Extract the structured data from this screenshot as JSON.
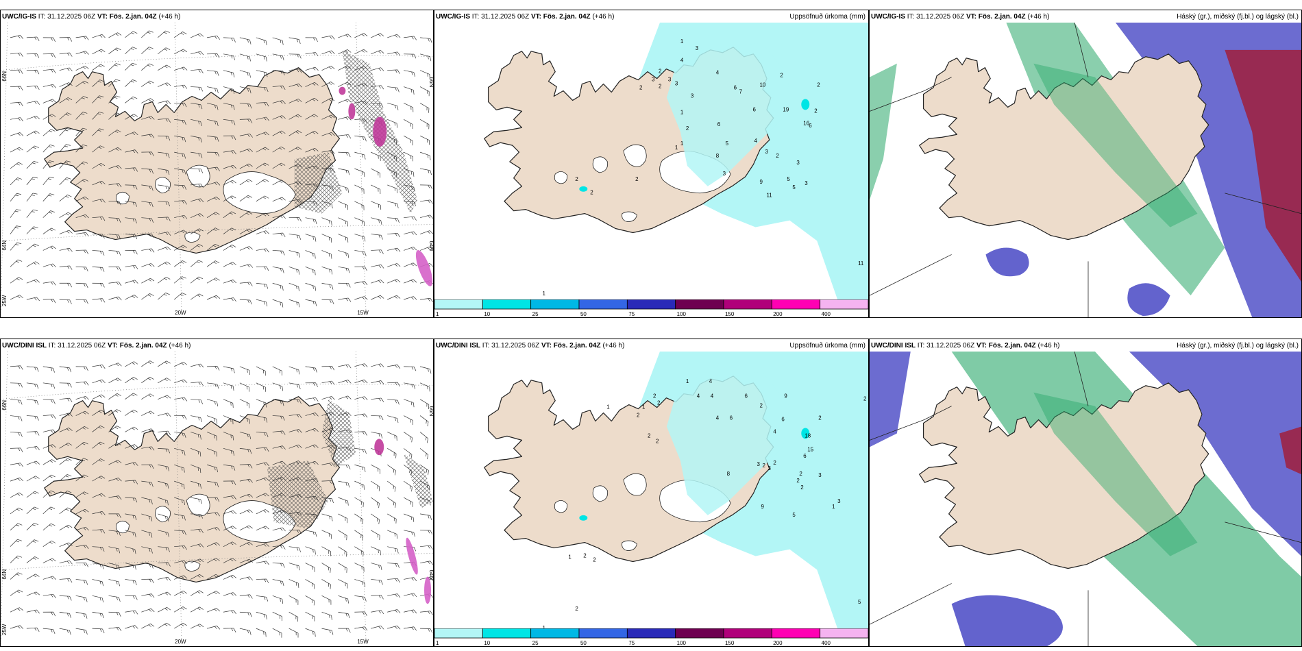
{
  "rows": [
    {
      "model": "UWC/IG-IS",
      "it_label": "IT:",
      "it_value": "31.12.2025 06Z",
      "vt_label": "VT:",
      "vt_value": "Fös. 2.jan. 04Z",
      "lead": "(+46 h)",
      "precip": {
        "title": "Uppsöfnuð úrkoma (mm)",
        "values": [
          {
            "v": "1"
          },
          {
            "v": "2"
          },
          {
            "v": "3"
          },
          {
            "v": "2"
          },
          {
            "v": "3"
          },
          {
            "v": "3"
          },
          {
            "v": "4"
          },
          {
            "v": "3"
          },
          {
            "v": "2"
          },
          {
            "v": "3"
          },
          {
            "v": "4"
          },
          {
            "v": "6"
          },
          {
            "v": "7"
          },
          {
            "v": "10"
          },
          {
            "v": "2"
          },
          {
            "v": "1"
          },
          {
            "v": "6"
          },
          {
            "v": "19"
          },
          {
            "v": "16"
          },
          {
            "v": "2"
          },
          {
            "v": "2"
          },
          {
            "v": "1"
          },
          {
            "v": "1"
          },
          {
            "v": "2"
          },
          {
            "v": "6"
          },
          {
            "v": "5"
          },
          {
            "v": "8"
          },
          {
            "v": "4"
          },
          {
            "v": "3"
          },
          {
            "v": "3"
          },
          {
            "v": "2"
          },
          {
            "v": "6"
          },
          {
            "v": "3"
          },
          {
            "v": "2"
          },
          {
            "v": "2"
          },
          {
            "v": "2"
          },
          {
            "v": "3"
          },
          {
            "v": "9"
          },
          {
            "v": "5"
          },
          {
            "v": "5"
          },
          {
            "v": "11"
          },
          {
            "v": "11"
          },
          {
            "v": "1"
          }
        ]
      },
      "cloud": {
        "title": "Háský (gr.), miðský (fj.bl.) og lágský (bl.)"
      }
    },
    {
      "model": "UWC/DINI ISL",
      "it_label": "IT:",
      "it_value": "31.12.2025 06Z",
      "vt_label": "VT:",
      "vt_value": "Fös. 2.jan. 04Z",
      "lead": "(+46 h)",
      "precip": {
        "title": "Uppsöfnuð úrkoma (mm)",
        "values": [
          {
            "v": "1"
          },
          {
            "v": "4"
          },
          {
            "v": "2"
          },
          {
            "v": "4"
          },
          {
            "v": "4"
          },
          {
            "v": "2"
          },
          {
            "v": "1"
          },
          {
            "v": "6"
          },
          {
            "v": "9"
          },
          {
            "v": "2"
          },
          {
            "v": "2"
          },
          {
            "v": "1"
          },
          {
            "v": "2"
          },
          {
            "v": "4"
          },
          {
            "v": "6"
          },
          {
            "v": "2"
          },
          {
            "v": "2"
          },
          {
            "v": "2"
          },
          {
            "v": "6"
          },
          {
            "v": "18"
          },
          {
            "v": "4"
          },
          {
            "v": "15"
          },
          {
            "v": "2"
          },
          {
            "v": "6"
          },
          {
            "v": "3"
          },
          {
            "v": "3"
          },
          {
            "v": "8"
          },
          {
            "v": "2"
          },
          {
            "v": "2"
          },
          {
            "v": "3"
          },
          {
            "v": "2"
          },
          {
            "v": "2"
          },
          {
            "v": "3"
          },
          {
            "v": "9"
          },
          {
            "v": "5"
          },
          {
            "v": "1"
          },
          {
            "v": "2"
          },
          {
            "v": "2"
          },
          {
            "v": "1"
          },
          {
            "v": "2"
          },
          {
            "v": "1"
          },
          {
            "v": "5"
          }
        ]
      },
      "cloud": {
        "title": "Háský (gr.), miðský (fj.bl.) og lágský (bl.)"
      }
    }
  ],
  "grid_labels": {
    "lat66": "66N",
    "lat64": "64N",
    "lon25": "25W",
    "lon20": "20W",
    "lon15": "15W"
  },
  "legend": {
    "labels": [
      "1",
      "10",
      "25",
      "50",
      "75",
      "100",
      "150",
      "200",
      "400"
    ],
    "colors": [
      "#b3f6f6",
      "#00e5e5",
      "#00b8e5",
      "#3366e5",
      "#2a2ab8",
      "#6e0050",
      "#b0007a",
      "#ff00b3",
      "#f5b3f0"
    ]
  },
  "colors": {
    "land": "#eddccb",
    "precip_light": "#b3f6f6",
    "high_cloud": "#2aa86a",
    "mid_cloud": "#5252c8",
    "low_cloud": "#2c6ee8",
    "heavy_precip": "#c03a9a",
    "red_cloud": "#a01e3c"
  }
}
